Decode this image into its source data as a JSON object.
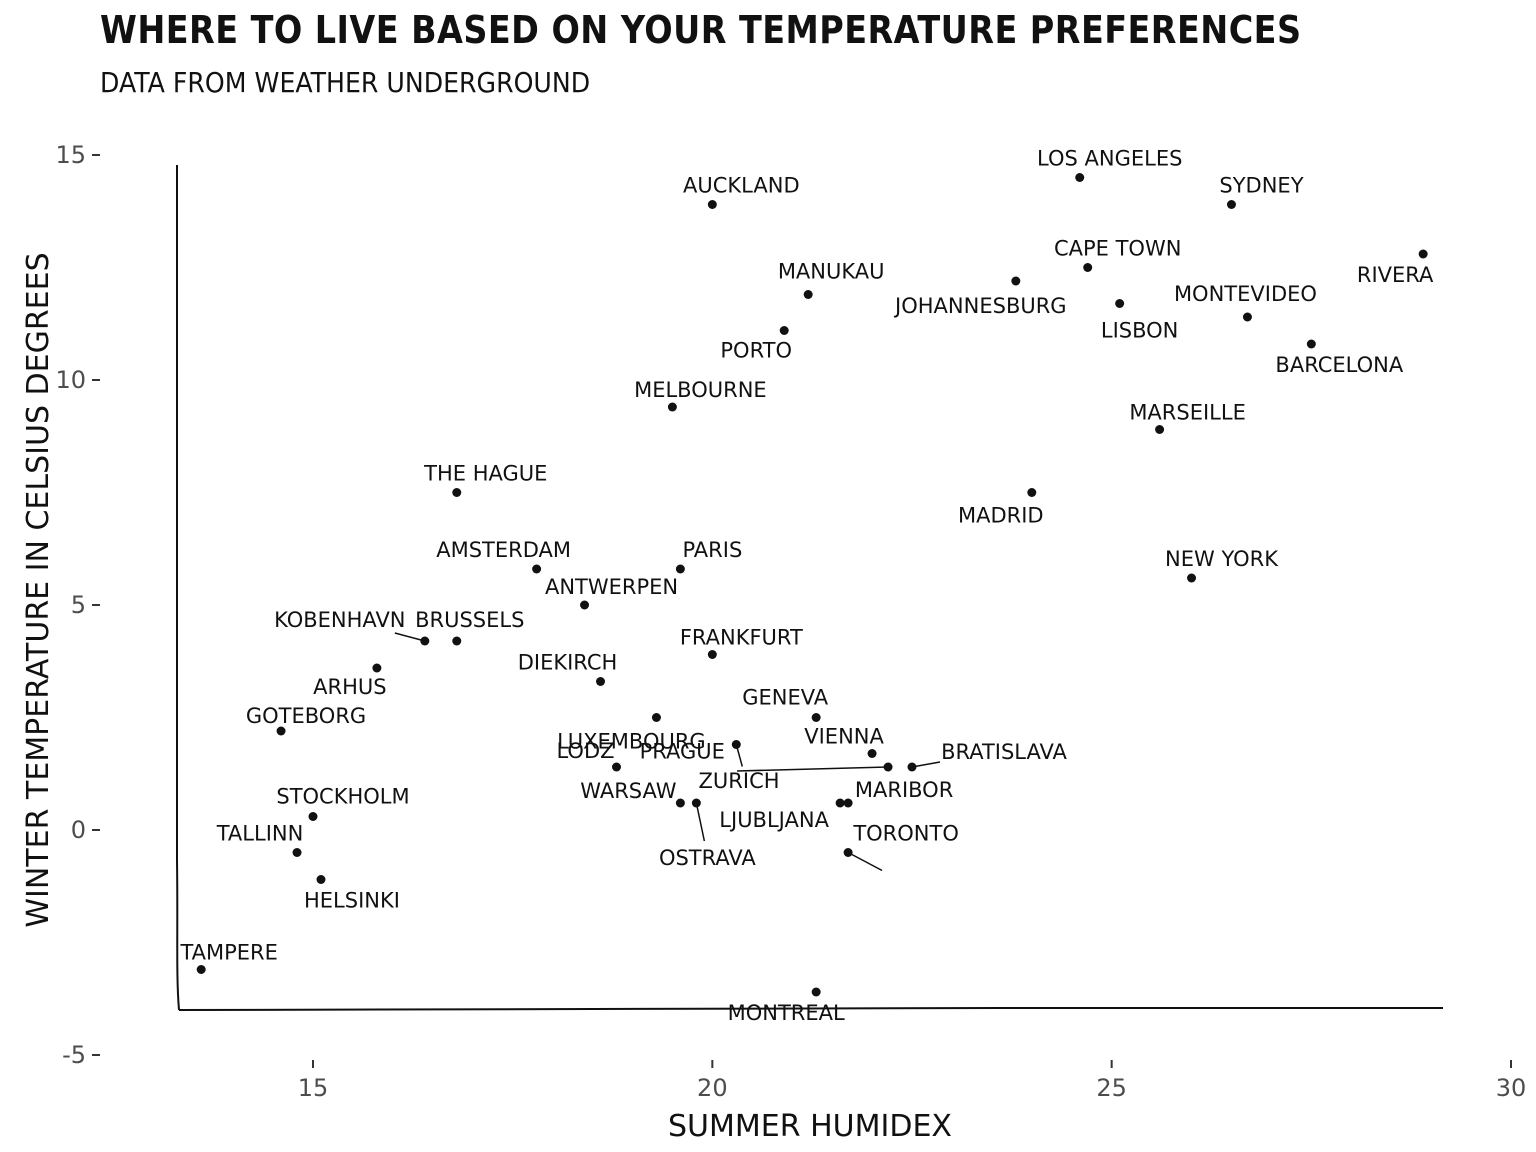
{
  "chart_data": {
    "type": "scatter",
    "title": "WHERE TO LIVE BASED ON YOUR TEMPERATURE PREFERENCES",
    "subtitle": "DATA FROM WEATHER UNDERGROUND",
    "xlabel": "SUMMER HUMIDEX",
    "ylabel": "WINTER TEMPERATURE IN CELSIUS DEGREES",
    "xlim": [
      11.0,
      30.0
    ],
    "ylim": [
      -5.0,
      15.0
    ],
    "xticks": [
      15,
      20,
      25,
      30
    ],
    "yticks": [
      -5,
      0,
      5,
      10,
      15
    ],
    "grid": false,
    "points": [
      {
        "name": "LOS ANGELES",
        "x": 24.6,
        "y": 14.5
      },
      {
        "name": "SYDNEY",
        "x": 26.5,
        "y": 13.9
      },
      {
        "name": "AUCKLAND",
        "x": 20.0,
        "y": 13.9
      },
      {
        "name": "RIVERA",
        "x": 28.9,
        "y": 12.8
      },
      {
        "name": "CAPE TOWN",
        "x": 24.7,
        "y": 12.5
      },
      {
        "name": "JOHANNESBURG",
        "x": 23.8,
        "y": 12.2
      },
      {
        "name": "MANUKAU",
        "x": 21.2,
        "y": 11.9
      },
      {
        "name": "LISBON",
        "x": 25.1,
        "y": 11.7
      },
      {
        "name": "MONTEVIDEO",
        "x": 26.7,
        "y": 11.4
      },
      {
        "name": "PORTO",
        "x": 20.9,
        "y": 11.1
      },
      {
        "name": "BARCELONA",
        "x": 27.5,
        "y": 10.8
      },
      {
        "name": "MELBOURNE",
        "x": 19.5,
        "y": 9.4
      },
      {
        "name": "MARSEILLE",
        "x": 25.6,
        "y": 8.9
      },
      {
        "name": "THE HAGUE",
        "x": 16.8,
        "y": 7.5
      },
      {
        "name": "MADRID",
        "x": 24.0,
        "y": 7.5
      },
      {
        "name": "AMSTERDAM",
        "x": 17.8,
        "y": 5.8
      },
      {
        "name": "PARIS",
        "x": 19.6,
        "y": 5.8
      },
      {
        "name": "NEW YORK",
        "x": 26.0,
        "y": 5.6
      },
      {
        "name": "ANTWERPEN",
        "x": 18.4,
        "y": 5.0
      },
      {
        "name": "KOBENHAVN",
        "x": 16.4,
        "y": 4.2
      },
      {
        "name": "BRUSSELS",
        "x": 16.8,
        "y": 4.2
      },
      {
        "name": "FRANKFURT",
        "x": 20.0,
        "y": 3.9
      },
      {
        "name": "ARHUS",
        "x": 15.8,
        "y": 3.6
      },
      {
        "name": "DIEKIRCH",
        "x": 18.6,
        "y": 3.3
      },
      {
        "name": "LUXEMBOURG",
        "x": 19.3,
        "y": 2.5
      },
      {
        "name": "GENEVA",
        "x": 21.3,
        "y": 2.5
      },
      {
        "name": "GOTEBORG",
        "x": 14.6,
        "y": 2.2
      },
      {
        "name": "PRAGUE",
        "x": 20.3,
        "y": 1.9
      },
      {
        "name": "VIENNA",
        "x": 22.0,
        "y": 1.7
      },
      {
        "name": "LODZ",
        "x": 18.8,
        "y": 1.4
      },
      {
        "name": "BRATISLAVA",
        "x": 22.5,
        "y": 1.4
      },
      {
        "name": "ZURICH",
        "x": 22.2,
        "y": 1.4
      },
      {
        "name": "WARSAW",
        "x": 19.6,
        "y": 0.6
      },
      {
        "name": "OSTRAVA",
        "x": 19.8,
        "y": 0.6
      },
      {
        "name": "LJUBLJANA",
        "x": 21.6,
        "y": 0.6
      },
      {
        "name": "MARIBOR",
        "x": 21.7,
        "y": 0.6
      },
      {
        "name": "STOCKHOLM",
        "x": 15.0,
        "y": 0.3
      },
      {
        "name": "TALLINN",
        "x": 14.8,
        "y": -0.5
      },
      {
        "name": "TORONTO",
        "x": 21.7,
        "y": -0.5
      },
      {
        "name": "HELSINKI",
        "x": 15.1,
        "y": -1.1
      },
      {
        "name": "TAMPERE",
        "x": 13.6,
        "y": -3.1
      },
      {
        "name": "MONTREAL",
        "x": 21.3,
        "y": -3.6
      }
    ]
  }
}
